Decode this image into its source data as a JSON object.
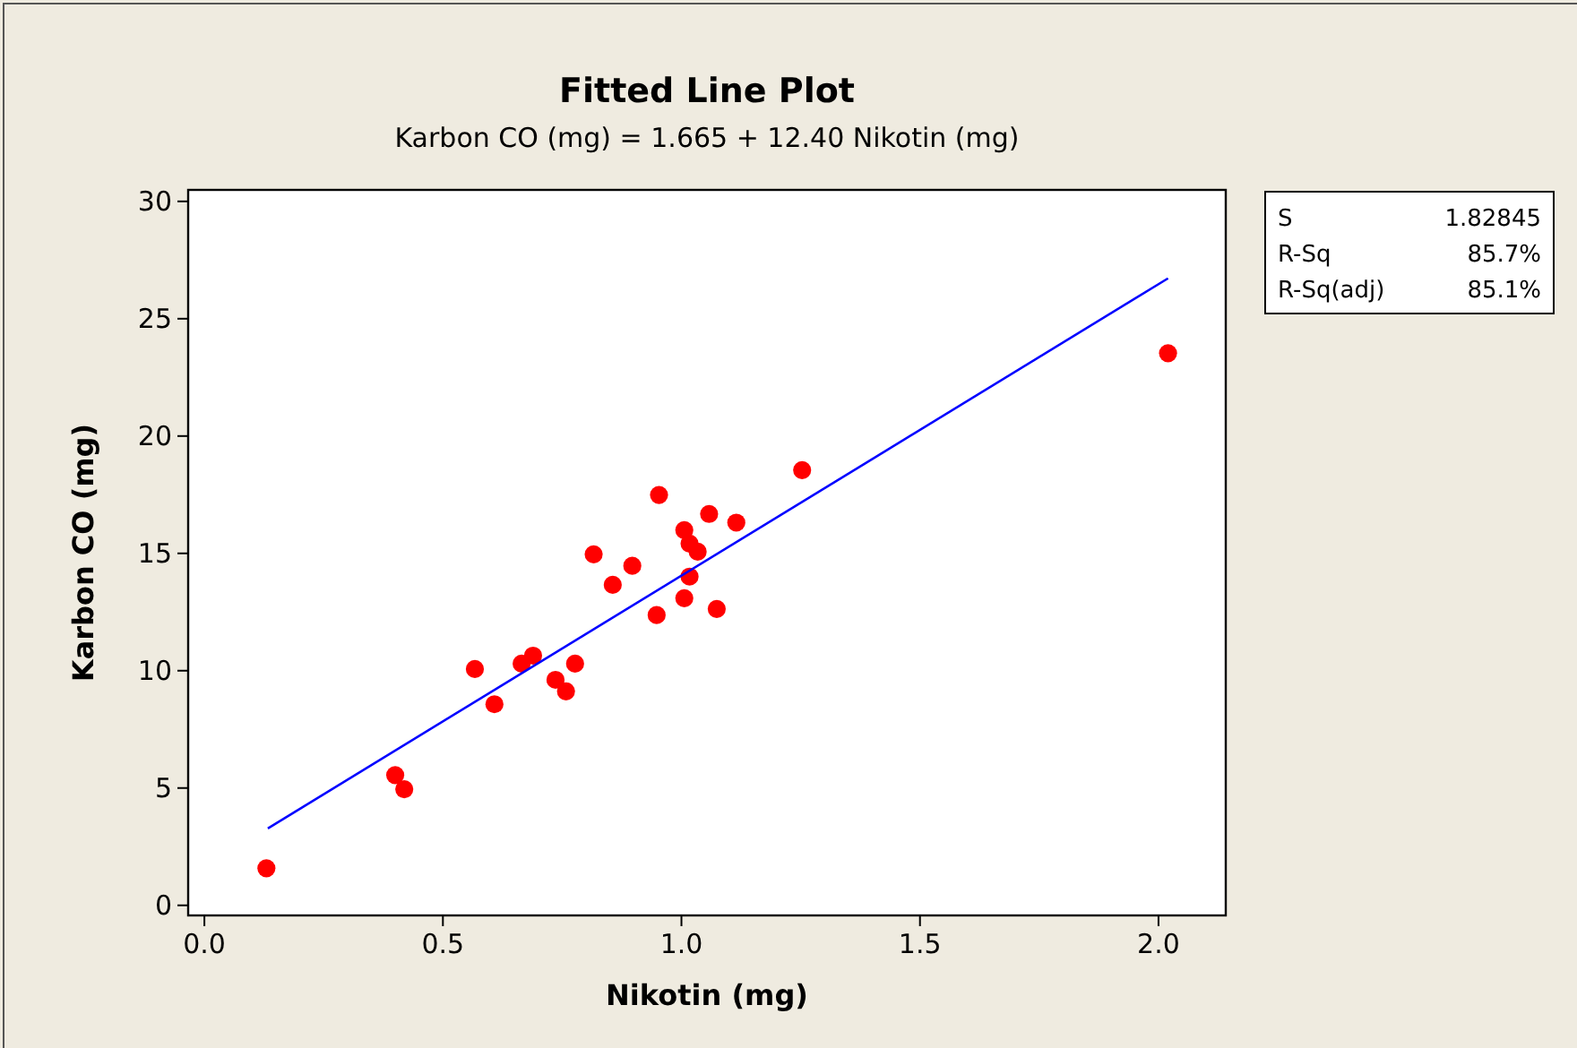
{
  "chart_data": {
    "type": "scatter",
    "title": "Fitted Line Plot",
    "subtitle": "Karbon CO (mg) =  1.665 + 12.40 Nikotin (mg)",
    "xlabel": "Nikotin (mg)",
    "ylabel": "Karbon CO (mg)",
    "annotations": [
      "S",
      "1.82845",
      "R-Sq",
      "85.7%",
      "R-Sq(adj)",
      "85.1%"
    ],
    "xlim": [
      -0.034,
      2.141
    ],
    "ylim": [
      -0.43,
      30.49
    ],
    "xticks": [
      {
        "value": 0,
        "label": "0.0"
      },
      {
        "value": 0.5,
        "label": "0.5"
      },
      {
        "value": 1,
        "label": "1.0"
      },
      {
        "value": 1.5,
        "label": "1.5"
      },
      {
        "value": 2,
        "label": "2.0"
      }
    ],
    "yticks": [
      0,
      5,
      10,
      15,
      20,
      25,
      30
    ],
    "grid": false,
    "marker": "circle",
    "series": [
      {
        "color": "#ff0000",
        "x": [
          0.13,
          0.4,
          0.419,
          0.567,
          0.608,
          0.665,
          0.689,
          0.736,
          0.758,
          0.777,
          0.816,
          0.856,
          0.897,
          0.948,
          0.953,
          1.006,
          1.006,
          1.017,
          1.017,
          1.034,
          1.058,
          1.074,
          1.115,
          1.253,
          2.02
        ],
        "values": [
          1.58,
          5.55,
          4.95,
          10.07,
          8.57,
          10.3,
          10.64,
          9.61,
          9.12,
          10.3,
          14.96,
          13.66,
          14.47,
          12.37,
          17.49,
          15.99,
          13.09,
          15.42,
          14.01,
          15.07,
          16.68,
          12.63,
          16.31,
          18.55,
          23.53
        ]
      },
      {
        "type": "line",
        "color": "#0000ff",
        "marker": "none",
        "line_style": "solid",
        "x": [
          0.133,
          2.02
        ],
        "values": [
          3.28,
          26.72
        ]
      }
    ]
  }
}
